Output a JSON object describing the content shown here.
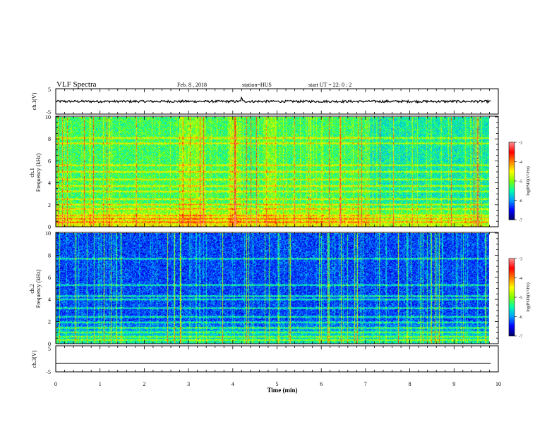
{
  "header": {
    "title": "VLF Spectra",
    "date": "Feb. 8 , 2018",
    "station": "station=HUS",
    "start_ut": "start UT = 22: 0 : 2"
  },
  "chart_data": [
    {
      "type": "line",
      "panel": "ch1-waveform",
      "ylabel": "ch.1(V)",
      "ylim": [
        -5,
        5
      ],
      "yticks": [
        "5",
        "-5"
      ],
      "xlim": [
        0,
        10
      ],
      "series": [
        {
          "values_description": "",
          "level": 0
        }
      ]
    },
    {
      "type": "heatmap",
      "panel": "ch1-spectrogram",
      "ylabel": "ch.1 Frequency (kHz)",
      "ylabel_line1": "ch.1",
      "ylabel_line2": "Frequency (kHz)",
      "ylim": [
        0,
        10
      ],
      "yticks": [
        "0",
        "2",
        "4",
        "6",
        "8",
        "10"
      ],
      "xlim": [
        0,
        9.83
      ],
      "colorbar": {
        "label": "log(PSD)(V²/Hz)",
        "range": [
          -7,
          -3
        ],
        "ticks": [
          "-3",
          "-4",
          "-5",
          "-6",
          "-7"
        ]
      },
      "bands_khz": [
        0.4,
        0.7,
        1.0,
        1.6,
        2.0,
        2.5,
        3.2,
        3.7,
        4.3,
        5.0,
        5.6,
        7.6,
        8.1
      ],
      "background_level": -5.3
    },
    {
      "type": "heatmap",
      "panel": "ch2-spectrogram",
      "ylabel": "ch.2 Frequency (kHz)",
      "ylabel_line1": "ch.2",
      "ylabel_line2": "Frequency (kHz)",
      "ylim": [
        0,
        10
      ],
      "yticks": [
        "0",
        "2",
        "4",
        "6",
        "8",
        "10"
      ],
      "xlim": [
        0,
        9.83
      ],
      "colorbar": {
        "label": "log(PSD)(V²/Hz)",
        "range": [
          -7,
          -3
        ],
        "ticks": [
          "-3",
          "-4",
          "-5",
          "-6",
          "-7"
        ]
      },
      "bands_khz": [
        0.3,
        0.6,
        1.0,
        1.4,
        1.9,
        2.4,
        3.2,
        4.0,
        4.3,
        5.3,
        7.7
      ],
      "background_level": -6.3
    },
    {
      "type": "line",
      "panel": "ch3-waveform",
      "ylabel": "ch.3(V)",
      "ylim": [
        -5,
        5
      ],
      "yticks": [
        "5",
        "-5"
      ],
      "xlim": [
        0,
        10
      ],
      "series": [
        {
          "level": -1.8
        }
      ]
    }
  ],
  "xaxis": {
    "label": "Time (min)",
    "ticks": [
      "0",
      "1",
      "2",
      "3",
      "4",
      "5",
      "6",
      "7",
      "8",
      "9",
      "10"
    ],
    "range": [
      0,
      10
    ]
  },
  "colors": {
    "background": "#ffffff",
    "axis": "#000000",
    "colormap": [
      "#00006a",
      "#0000ff",
      "#00a0ff",
      "#00ffaa",
      "#80ff00",
      "#ffff00",
      "#ff8000",
      "#ff0000",
      "#ff9090"
    ]
  }
}
